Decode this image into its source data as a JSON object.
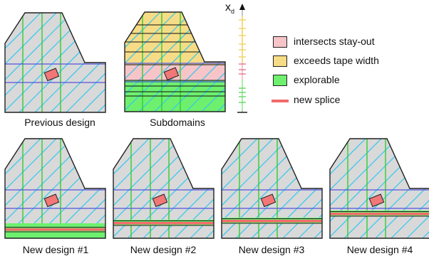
{
  "captions": {
    "previous": "Previous design",
    "subdomains": "Subdomains",
    "new1": "New design #1",
    "new2": "New design #2",
    "new3": "New design #3",
    "new4": "New design #4"
  },
  "axis": {
    "label": "x",
    "subscript": "d"
  },
  "legend": [
    {
      "label": "intersects stay-out",
      "color": "#f7c5c8",
      "kind": "swatch"
    },
    {
      "label": "exceeds tape width",
      "color": "#f6dc86",
      "kind": "swatch"
    },
    {
      "label": "explorable",
      "color": "#6ef06e",
      "kind": "swatch"
    },
    {
      "label": "new splice",
      "color": "#f26b6b",
      "kind": "line"
    }
  ],
  "colors": {
    "panel_fill": "#d9d9d9",
    "diagonal": "#33c8ee",
    "vertical": "#33cc33",
    "horizontal": "#5555dd",
    "stayout_fill": "#f27777",
    "splice": "#f26b6b",
    "explorable": "#6ef06e",
    "exceeds": "#f6dc86",
    "intersects": "#f7c5c8"
  }
}
